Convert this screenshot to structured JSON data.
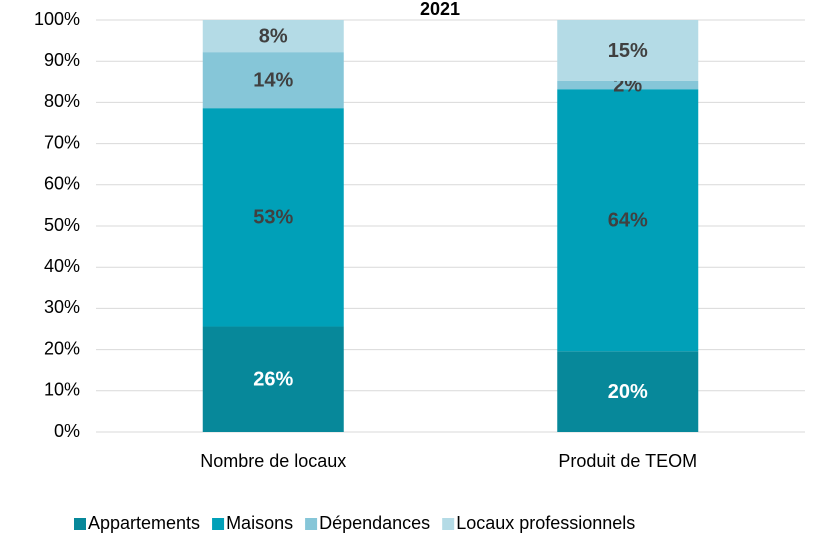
{
  "chart_data": {
    "type": "stacked_bar",
    "title": "2021",
    "categories": [
      "Nombre de locaux",
      "Produit de TEOM"
    ],
    "series": [
      {
        "name": "Appartements",
        "color": "#07889a",
        "label_color": "#ffffff",
        "values": [
          25.6,
          19.6
        ],
        "value_labels": [
          "26%",
          "20%"
        ]
      },
      {
        "name": "Maisons",
        "color": "#00a0b8",
        "label_color": "#404040",
        "values": [
          53.0,
          63.6
        ],
        "value_labels": [
          "53%",
          "64%"
        ]
      },
      {
        "name": "Dépendances",
        "color": "#86c6d8",
        "label_color": "#404040",
        "values": [
          13.6,
          2.0
        ],
        "value_labels": [
          "14%",
          "2%"
        ]
      },
      {
        "name": "Locaux professionnels",
        "color": "#b4dbe6",
        "label_color": "#404040",
        "values": [
          7.8,
          14.8
        ],
        "value_labels": [
          "8%",
          "15%"
        ]
      }
    ],
    "ylim": [
      0,
      100
    ],
    "yticks": [
      {
        "value": 0,
        "label": "0%"
      },
      {
        "value": 10,
        "label": "10%"
      },
      {
        "value": 20,
        "label": "20%"
      },
      {
        "value": 30,
        "label": "30%"
      },
      {
        "value": 40,
        "label": "40%"
      },
      {
        "value": 50,
        "label": "50%"
      },
      {
        "value": 60,
        "label": "60%"
      },
      {
        "value": 70,
        "label": "70%"
      },
      {
        "value": 80,
        "label": "80%"
      },
      {
        "value": 90,
        "label": "90%"
      },
      {
        "value": 100,
        "label": "100%"
      }
    ],
    "grid": true,
    "legend": "bottom"
  }
}
